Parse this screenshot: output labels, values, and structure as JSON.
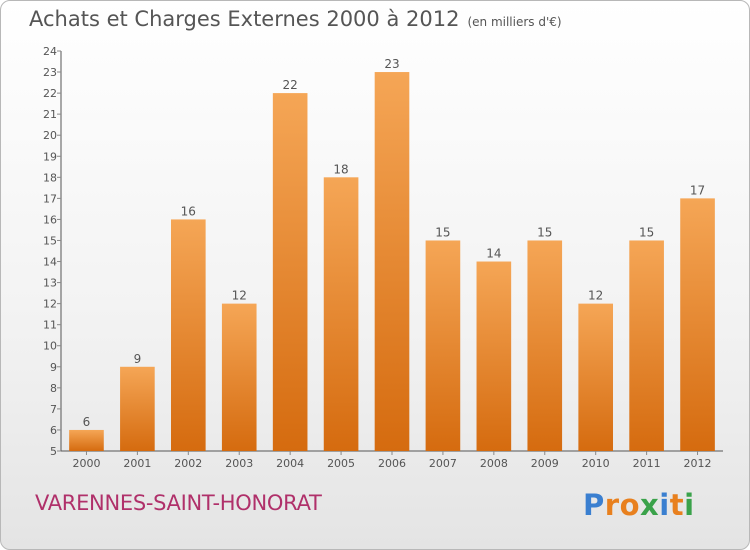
{
  "header": {
    "title": "Achats et Charges Externes 2000 à 2012",
    "unit": "(en milliers d'€)"
  },
  "footer": {
    "town": "VARENNES-SAINT-HONORAT",
    "brand": "Proxiti",
    "brand_colors": [
      "#3a7fd0",
      "#e8801e",
      "#e8801e",
      "#3aa24a",
      "#3a7fd0",
      "#e8801e",
      "#3aa24a"
    ]
  },
  "colors": {
    "bar_top": "#f5a656",
    "bar_bottom": "#d56b0f",
    "axis": "#555555",
    "grid_tick": "#888888",
    "town": "#b0306a"
  },
  "chart_data": {
    "type": "bar",
    "categories": [
      "2000",
      "2001",
      "2002",
      "2003",
      "2004",
      "2005",
      "2006",
      "2007",
      "2008",
      "2009",
      "2010",
      "2011",
      "2012"
    ],
    "values": [
      6,
      9,
      16,
      12,
      22,
      18,
      23,
      15,
      14,
      15,
      12,
      15,
      17
    ],
    "data_labels": [
      "6",
      "9",
      "16",
      "12",
      "22",
      "18",
      "23",
      "15",
      "14",
      "15",
      "12",
      "15",
      "17"
    ],
    "yticks": [
      "5",
      "6",
      "7",
      "8",
      "9",
      "10",
      "11",
      "12",
      "13",
      "14",
      "15",
      "16",
      "17",
      "18",
      "19",
      "20",
      "21",
      "22",
      "23",
      "24"
    ],
    "ylim": [
      5,
      24
    ],
    "grid": false
  }
}
